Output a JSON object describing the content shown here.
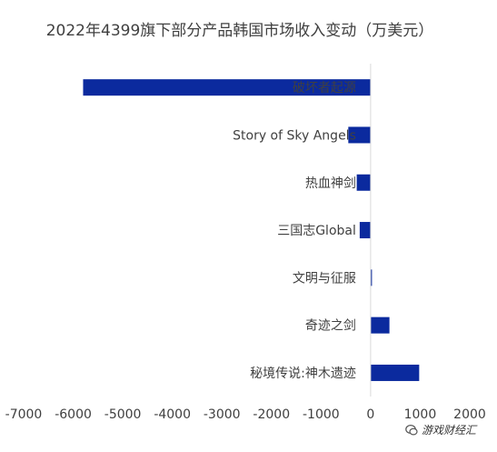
{
  "chart_data": {
    "type": "bar",
    "orientation": "horizontal",
    "title": "2022年4399旗下部分产品韩国市场收入变动（万美元）",
    "categories": [
      "破坏者起源",
      "Story of Sky Angels",
      "热血神剑",
      "三国志Global",
      "文明与征服",
      "奇迹之剑",
      "秘境传说:神木遗迹"
    ],
    "values": [
      -5800,
      -450,
      -280,
      -220,
      20,
      380,
      980
    ],
    "xlim": [
      -7000,
      2000
    ],
    "xticks": [
      -7000,
      -6000,
      -5000,
      -4000,
      -3000,
      -2000,
      -1000,
      0,
      1000,
      2000
    ],
    "bar_color": "#0b2a9e",
    "grid": false
  },
  "watermark": {
    "text": "游戏财经汇",
    "icon": "wechat-icon"
  }
}
